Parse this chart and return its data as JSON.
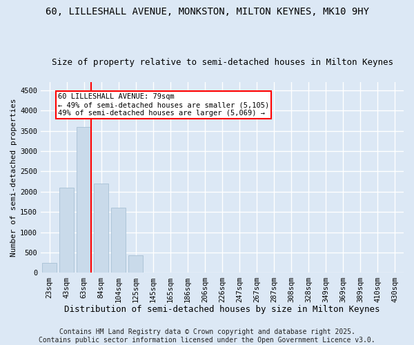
{
  "title": "60, LILLESHALL AVENUE, MONKSTON, MILTON KEYNES, MK10 9HY",
  "subtitle": "Size of property relative to semi-detached houses in Milton Keynes",
  "xlabel": "Distribution of semi-detached houses by size in Milton Keynes",
  "ylabel": "Number of semi-detached properties",
  "categories": [
    "23sqm",
    "43sqm",
    "63sqm",
    "84sqm",
    "104sqm",
    "125sqm",
    "145sqm",
    "165sqm",
    "186sqm",
    "206sqm",
    "226sqm",
    "247sqm",
    "267sqm",
    "287sqm",
    "308sqm",
    "328sqm",
    "349sqm",
    "369sqm",
    "389sqm",
    "410sqm",
    "430sqm"
  ],
  "values": [
    250,
    2100,
    3600,
    2200,
    1600,
    430,
    0,
    0,
    0,
    0,
    0,
    0,
    0,
    0,
    0,
    0,
    0,
    0,
    0,
    0,
    0
  ],
  "bar_color": "#c9daea",
  "bar_edge_color": "#a8c0d4",
  "vline_x": 2.4,
  "vline_color": "red",
  "annotation_text": "60 LILLESHALL AVENUE: 79sqm\n← 49% of semi-detached houses are smaller (5,105)\n49% of semi-detached houses are larger (5,069) →",
  "annotation_box_color": "red",
  "annotation_text_color": "black",
  "annotation_bg": "white",
  "ylim": [
    0,
    4700
  ],
  "yticks": [
    0,
    500,
    1000,
    1500,
    2000,
    2500,
    3000,
    3500,
    4000,
    4500
  ],
  "background_color": "#dce8f5",
  "grid_color": "#ffffff",
  "footer": "Contains HM Land Registry data © Crown copyright and database right 2025.\nContains public sector information licensed under the Open Government Licence v3.0.",
  "title_fontsize": 10,
  "subtitle_fontsize": 9,
  "xlabel_fontsize": 9,
  "ylabel_fontsize": 8,
  "tick_fontsize": 7.5,
  "footer_fontsize": 7
}
